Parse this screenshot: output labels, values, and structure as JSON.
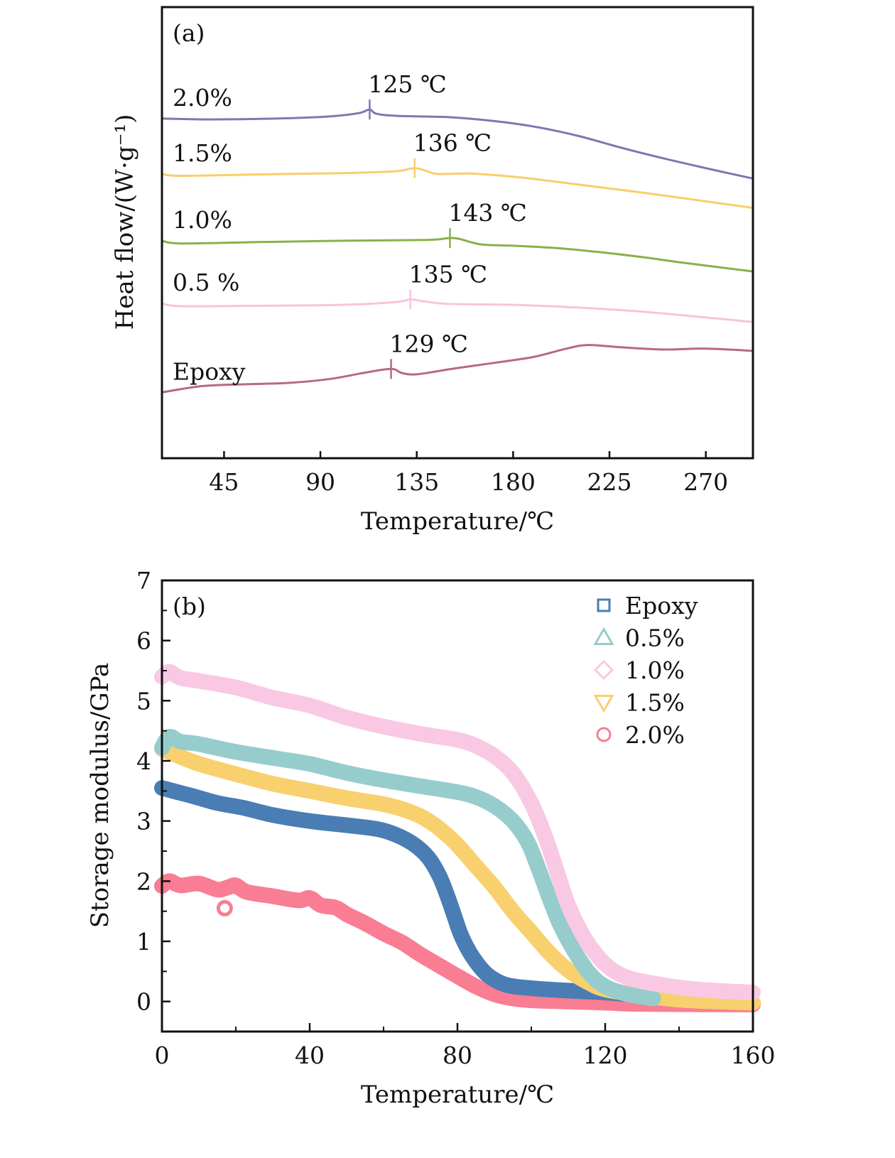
{
  "chart_data": [
    {
      "id": "a",
      "type": "line",
      "panel_label": "(a)",
      "title": "",
      "xlabel": "Temperature/℃",
      "ylabel": "Heat flow/(W·g⁻¹)",
      "xlim": [
        16,
        292
      ],
      "ylim": [
        0,
        100
      ],
      "y_units_note": "arbitrary (no y tick scale shown)",
      "xticks": [
        45,
        90,
        135,
        180,
        225,
        270
      ],
      "yticks": [],
      "grid": false,
      "legend": null,
      "series": [
        {
          "name": "2.0%",
          "label": "2.0%",
          "color": "#7b78b3",
          "marker_T": 113,
          "annotation": "125 ℃",
          "points": [
            [
              16,
              75.3
            ],
            [
              40,
              75.1
            ],
            [
              70,
              75.3
            ],
            [
              95,
              75.8
            ],
            [
              108,
              76.5
            ],
            [
              113,
              77.3
            ],
            [
              116,
              76.4
            ],
            [
              125,
              75.9
            ],
            [
              150,
              75.6
            ],
            [
              170,
              74.8
            ],
            [
              190,
              73.5
            ],
            [
              210,
              71.5
            ],
            [
              230,
              68.9
            ],
            [
              250,
              66.5
            ],
            [
              270,
              64.3
            ],
            [
              292,
              62.0
            ]
          ]
        },
        {
          "name": "1.5%",
          "label": "1.5%",
          "color": "#f7cf6b",
          "marker_T": 134,
          "annotation": "136 ℃",
          "points": [
            [
              16,
              63.0
            ],
            [
              25,
              62.6
            ],
            [
              60,
              62.9
            ],
            [
              100,
              63.2
            ],
            [
              125,
              63.6
            ],
            [
              134,
              64.3
            ],
            [
              140,
              63.6
            ],
            [
              145,
              63.0
            ],
            [
              160,
              63.1
            ],
            [
              180,
              62.4
            ],
            [
              200,
              61.3
            ],
            [
              220,
              60.1
            ],
            [
              240,
              58.9
            ],
            [
              260,
              57.6
            ],
            [
              292,
              55.5
            ]
          ]
        },
        {
          "name": "1.0%",
          "label": "1.0%",
          "color": "#8ab048",
          "marker_T": 150.5,
          "annotation": "143 ℃",
          "points": [
            [
              16,
              48.2
            ],
            [
              25,
              47.6
            ],
            [
              60,
              47.9
            ],
            [
              100,
              48.2
            ],
            [
              140,
              48.4
            ],
            [
              150,
              48.8
            ],
            [
              155,
              48.6
            ],
            [
              165,
              47.4
            ],
            [
              180,
              47.1
            ],
            [
              200,
              46.6
            ],
            [
              220,
              45.7
            ],
            [
              240,
              44.6
            ],
            [
              260,
              43.3
            ],
            [
              292,
              41.4
            ]
          ]
        },
        {
          "name": "0.5 %",
          "label": "0.5 %",
          "color": "#f8c4de",
          "marker_T": 132,
          "annotation": "135 ℃",
          "points": [
            [
              16,
              34.3
            ],
            [
              25,
              33.7
            ],
            [
              60,
              33.8
            ],
            [
              100,
              34.0
            ],
            [
              125,
              34.6
            ],
            [
              132,
              35.2
            ],
            [
              138,
              34.8
            ],
            [
              150,
              34.2
            ],
            [
              180,
              34.0
            ],
            [
              210,
              33.4
            ],
            [
              240,
              32.5
            ],
            [
              270,
              31.2
            ],
            [
              292,
              30.2
            ]
          ]
        },
        {
          "name": "Epoxy",
          "label": "Epoxy",
          "color": "#b8678b",
          "marker_T": 123,
          "annotation": "129 ℃",
          "points": [
            [
              16,
              14.6
            ],
            [
              35,
              16.0
            ],
            [
              55,
              16.4
            ],
            [
              75,
              16.7
            ],
            [
              95,
              17.6
            ],
            [
              110,
              18.9
            ],
            [
              123,
              19.8
            ],
            [
              128,
              18.9
            ],
            [
              135,
              18.6
            ],
            [
              150,
              19.7
            ],
            [
              160,
              20.4
            ],
            [
              175,
              21.4
            ],
            [
              190,
              22.5
            ],
            [
              205,
              24.3
            ],
            [
              215,
              25.1
            ],
            [
              230,
              24.6
            ],
            [
              250,
              24.1
            ],
            [
              270,
              24.3
            ],
            [
              292,
              23.8
            ]
          ]
        }
      ]
    },
    {
      "id": "b",
      "type": "scatter",
      "panel_label": "(b)",
      "title": "",
      "xlabel": "Temperature/℃",
      "ylabel": "Storage modulus/GPa",
      "xlim": [
        0,
        160
      ],
      "ylim": [
        -0.5,
        7
      ],
      "xticks": [
        0,
        40,
        80,
        120,
        160
      ],
      "xminor": [
        20,
        60,
        100,
        140
      ],
      "yticks": [
        0,
        1,
        2,
        3,
        4,
        5,
        6,
        7
      ],
      "yminor": [
        0.5,
        1.5,
        2.5,
        3.5,
        4.5,
        5.5,
        6.5
      ],
      "grid": false,
      "legend": {
        "placement": "top-right"
      },
      "series": [
        {
          "name": "Epoxy",
          "marker": "square",
          "color": "#4a7db3",
          "points": [
            [
              0,
              3.55
            ],
            [
              3,
              3.5
            ],
            [
              8,
              3.42
            ],
            [
              15,
              3.3
            ],
            [
              22,
              3.22
            ],
            [
              30,
              3.1
            ],
            [
              40,
              3.0
            ],
            [
              50,
              2.93
            ],
            [
              58,
              2.87
            ],
            [
              63,
              2.78
            ],
            [
              68,
              2.62
            ],
            [
              72,
              2.4
            ],
            [
              75,
              2.1
            ],
            [
              77,
              1.8
            ],
            [
              79,
              1.45
            ],
            [
              81,
              1.1
            ],
            [
              84,
              0.75
            ],
            [
              88,
              0.45
            ],
            [
              93,
              0.28
            ],
            [
              100,
              0.22
            ],
            [
              110,
              0.18
            ],
            [
              120,
              0.15
            ],
            [
              130,
              0.1
            ],
            [
              135,
              0.08
            ]
          ]
        },
        {
          "name": "0.5%",
          "marker": "triangle-up",
          "color": "#96cdcc",
          "points": [
            [
              0,
              4.22
            ],
            [
              2,
              4.4
            ],
            [
              5,
              4.32
            ],
            [
              10,
              4.28
            ],
            [
              20,
              4.15
            ],
            [
              30,
              4.05
            ],
            [
              40,
              3.95
            ],
            [
              50,
              3.8
            ],
            [
              60,
              3.68
            ],
            [
              70,
              3.58
            ],
            [
              80,
              3.48
            ],
            [
              85,
              3.4
            ],
            [
              90,
              3.25
            ],
            [
              95,
              3.0
            ],
            [
              99,
              2.65
            ],
            [
              102,
              2.2
            ],
            [
              105,
              1.7
            ],
            [
              108,
              1.25
            ],
            [
              112,
              0.8
            ],
            [
              116,
              0.45
            ],
            [
              120,
              0.25
            ],
            [
              126,
              0.12
            ],
            [
              133,
              0.05
            ]
          ]
        },
        {
          "name": "1.0%",
          "marker": "diamond",
          "color": "#f9c9e4",
          "points": [
            [
              0,
              5.4
            ],
            [
              2,
              5.48
            ],
            [
              5,
              5.38
            ],
            [
              10,
              5.33
            ],
            [
              20,
              5.22
            ],
            [
              30,
              5.05
            ],
            [
              40,
              4.92
            ],
            [
              50,
              4.72
            ],
            [
              60,
              4.57
            ],
            [
              70,
              4.45
            ],
            [
              80,
              4.35
            ],
            [
              85,
              4.25
            ],
            [
              90,
              4.08
            ],
            [
              95,
              3.8
            ],
            [
              100,
              3.3
            ],
            [
              104,
              2.7
            ],
            [
              107,
              2.15
            ],
            [
              110,
              1.6
            ],
            [
              114,
              1.1
            ],
            [
              118,
              0.75
            ],
            [
              122,
              0.52
            ],
            [
              127,
              0.38
            ],
            [
              135,
              0.28
            ],
            [
              145,
              0.2
            ],
            [
              160,
              0.15
            ]
          ]
        },
        {
          "name": "1.5%",
          "marker": "triangle-down",
          "color": "#f8d06d",
          "points": [
            [
              0,
              4.2
            ],
            [
              3,
              4.12
            ],
            [
              10,
              3.95
            ],
            [
              20,
              3.78
            ],
            [
              30,
              3.62
            ],
            [
              40,
              3.5
            ],
            [
              50,
              3.38
            ],
            [
              60,
              3.28
            ],
            [
              65,
              3.2
            ],
            [
              70,
              3.08
            ],
            [
              75,
              2.88
            ],
            [
              80,
              2.6
            ],
            [
              85,
              2.25
            ],
            [
              90,
              1.9
            ],
            [
              95,
              1.5
            ],
            [
              100,
              1.15
            ],
            [
              105,
              0.8
            ],
            [
              110,
              0.52
            ],
            [
              115,
              0.33
            ],
            [
              120,
              0.2
            ],
            [
              130,
              0.1
            ],
            [
              140,
              0.03
            ],
            [
              150,
              0.0
            ],
            [
              160,
              -0.02
            ]
          ]
        },
        {
          "name": "2.0%",
          "marker": "circle",
          "color": "#f97d93",
          "points": [
            [
              0,
              1.92
            ],
            [
              2,
              2.0
            ],
            [
              5,
              1.93
            ],
            [
              10,
              1.96
            ],
            [
              15,
              1.86
            ],
            [
              18,
              1.9
            ],
            [
              20,
              1.93
            ],
            [
              23,
              1.82
            ],
            [
              30,
              1.75
            ],
            [
              37,
              1.68
            ],
            [
              40,
              1.72
            ],
            [
              43,
              1.6
            ],
            [
              47,
              1.56
            ],
            [
              50,
              1.45
            ],
            [
              55,
              1.3
            ],
            [
              60,
              1.13
            ],
            [
              65,
              0.98
            ],
            [
              70,
              0.78
            ],
            [
              75,
              0.6
            ],
            [
              80,
              0.42
            ],
            [
              85,
              0.25
            ],
            [
              90,
              0.12
            ],
            [
              95,
              0.05
            ],
            [
              100,
              0.02
            ],
            [
              110,
              0.0
            ],
            [
              120,
              -0.02
            ],
            [
              130,
              -0.04
            ],
            [
              160,
              -0.05
            ]
          ],
          "outliers": [
            [
              17,
              1.55
            ]
          ]
        }
      ]
    }
  ]
}
